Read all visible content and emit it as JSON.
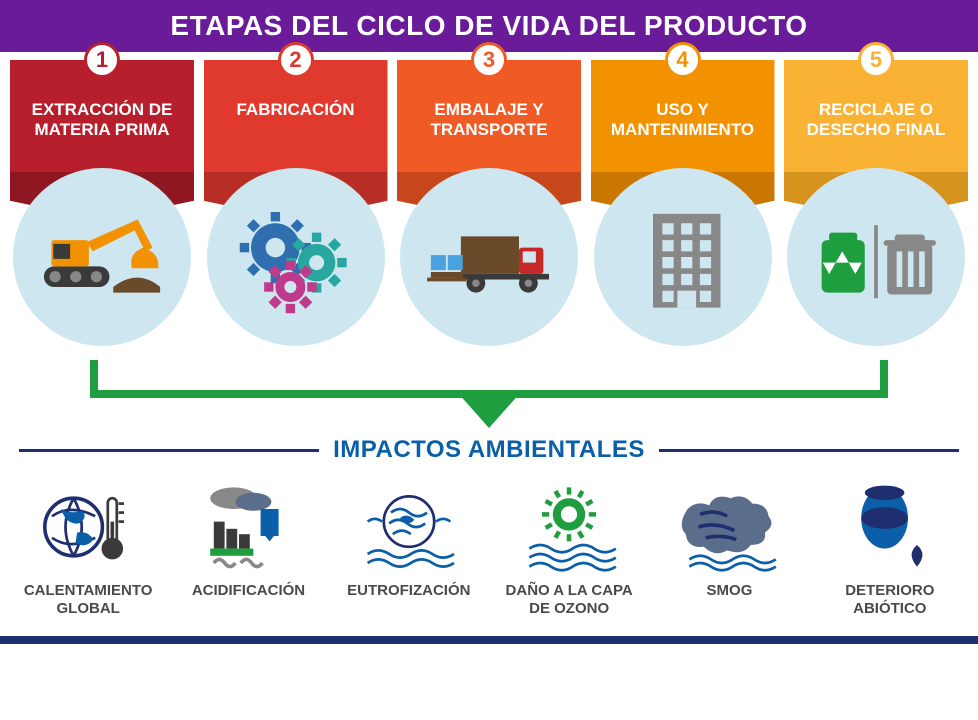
{
  "title": "ETAPAS DEL CICLO DE VIDA DEL PRODUCTO",
  "title_bg": "#6a1b9a",
  "title_color": "#ffffff",
  "title_fontsize": 28,
  "page_bg": "#ffffff",
  "circle_bg": "#cde6f0",
  "stages": [
    {
      "n": "1",
      "label": "EXTRACCIÓN DE MATERIA PRIMA",
      "color_main": "#b81f2d",
      "color_dark": "#8f1722",
      "number_color": "#b81f2d",
      "icon": "excavator"
    },
    {
      "n": "2",
      "label": "FABRICACIÓN",
      "color_main": "#e03a2f",
      "color_dark": "#b82d24",
      "number_color": "#e03a2f",
      "icon": "gears"
    },
    {
      "n": "3",
      "label": "EMBALAJE Y TRANSPORTE",
      "color_main": "#f05a24",
      "color_dark": "#c6471b",
      "number_color": "#f05a24",
      "icon": "truck"
    },
    {
      "n": "4",
      "label": "USO Y MANTENIMIENTO",
      "color_main": "#f39200",
      "color_dark": "#c97700",
      "number_color": "#f39200",
      "icon": "building"
    },
    {
      "n": "5",
      "label": "RECICLAJE O DESECHO FINAL",
      "color_main": "#f9b233",
      "color_dark": "#d6931e",
      "number_color": "#f9b233",
      "icon": "recycle-trash"
    }
  ],
  "bracket_color": "#1e9e3e",
  "bracket_thickness": 8,
  "subtitle": "IMPACTOS AMBIENTALES",
  "subtitle_color": "#0a5fa8",
  "subtitle_fontsize": 24,
  "subtitle_line_color": "#1e2e6e",
  "impacts_label_color": "#4a4a4a",
  "impacts": [
    {
      "label": "CALENTAMIENTO GLOBAL",
      "icon": "globe-therm"
    },
    {
      "label": "ACIDIFICACIÓN",
      "icon": "acid"
    },
    {
      "label": "EUTROFIZACIÓN",
      "icon": "eutro"
    },
    {
      "label": "DAÑO A LA CAPA DE OZONO",
      "icon": "ozone"
    },
    {
      "label": "SMOG",
      "icon": "smog"
    },
    {
      "label": "DETERIORO ABIÓTICO",
      "icon": "abiotic"
    }
  ],
  "bottom_bar_color": "#1e2e6e",
  "icon_palette": {
    "orange": "#f39200",
    "brown": "#6b4a2a",
    "dark": "#3a3a3a",
    "blue": "#2f6fb0",
    "sky": "#4aa3df",
    "green": "#1e9e3e",
    "magenta": "#c03a8b",
    "teal": "#2aa6a0",
    "red": "#c62828",
    "grey": "#888888",
    "navy": "#1e2e6e",
    "mid": "#5a6e8c",
    "deepblue": "#0a5fa8"
  }
}
